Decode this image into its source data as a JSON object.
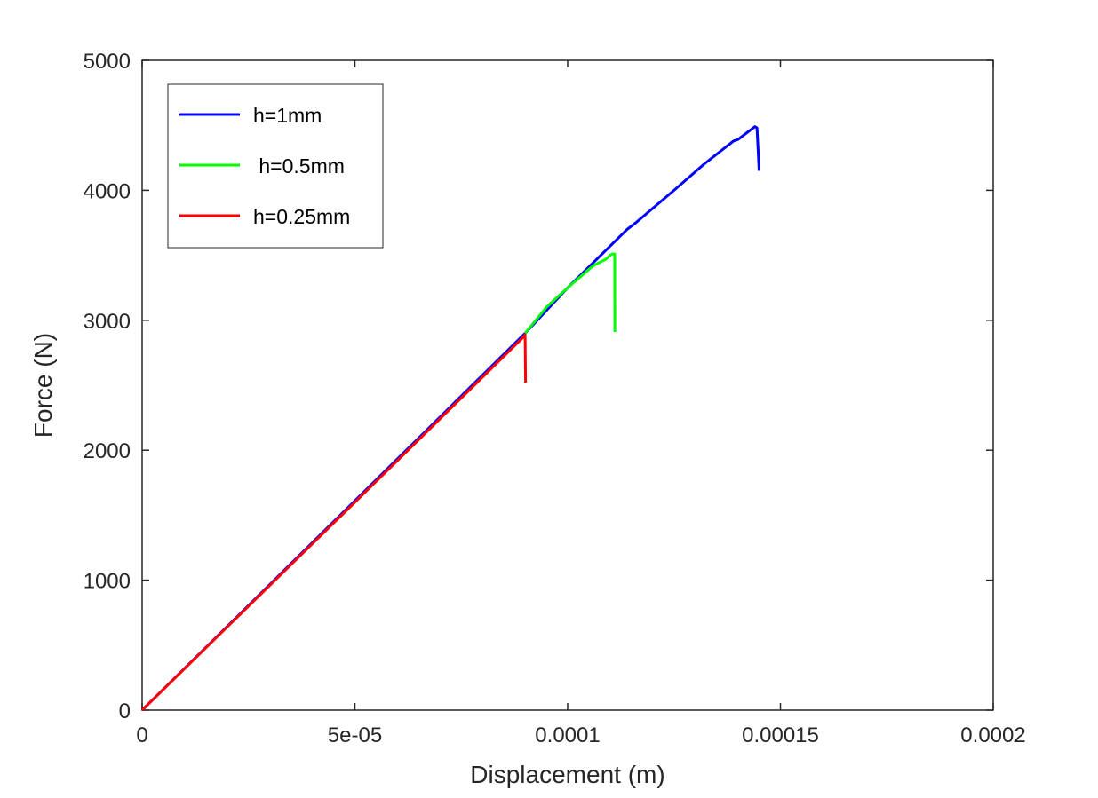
{
  "chart_data": {
    "type": "line",
    "title": "",
    "xlabel": "Displacement (m)",
    "ylabel": "Force (N)",
    "xlim": [
      0,
      0.0002
    ],
    "ylim": [
      0,
      5000
    ],
    "xticks": [
      0,
      5e-05,
      0.0001,
      0.00015,
      0.0002
    ],
    "xtick_labels": [
      "0",
      "5e-05",
      "0.0001",
      "0.00015",
      "0.0002"
    ],
    "yticks": [
      0,
      1000,
      2000,
      3000,
      4000,
      5000
    ],
    "ytick_labels": [
      "0",
      "1000",
      "2000",
      "3000",
      "4000",
      "5000"
    ],
    "grid": false,
    "legend_position": "top-left",
    "series": [
      {
        "name": "h=1mm",
        "color": "#0000ff",
        "x": [
          0,
          9e-05,
          0.0001,
          0.000114,
          0.000116,
          0.000125,
          0.000132,
          0.000139,
          0.0001395,
          0.00014,
          0.000144,
          0.0001445,
          0.000145
        ],
        "y": [
          0,
          2900,
          3250,
          3700,
          3750,
          4000,
          4200,
          4380,
          4385,
          4390,
          4490,
          4480,
          4150
        ]
      },
      {
        "name": " h=0.5mm",
        "color": "#00ff00",
        "x": [
          9e-05,
          9.5e-05,
          0.0001,
          0.000106,
          0.000109,
          0.00011,
          0.0001105,
          0.00011105,
          0.0001111
        ],
        "y": [
          2900,
          3100,
          3250,
          3420,
          3470,
          3500,
          3510,
          3510,
          2910
        ]
      },
      {
        "name": "h=0.25mm",
        "color": "#ff0000",
        "x": [
          0,
          5e-05,
          8.99e-05,
          9e-05,
          9.01e-05
        ],
        "y": [
          0,
          1600,
          2880,
          2890,
          2520
        ]
      }
    ]
  }
}
